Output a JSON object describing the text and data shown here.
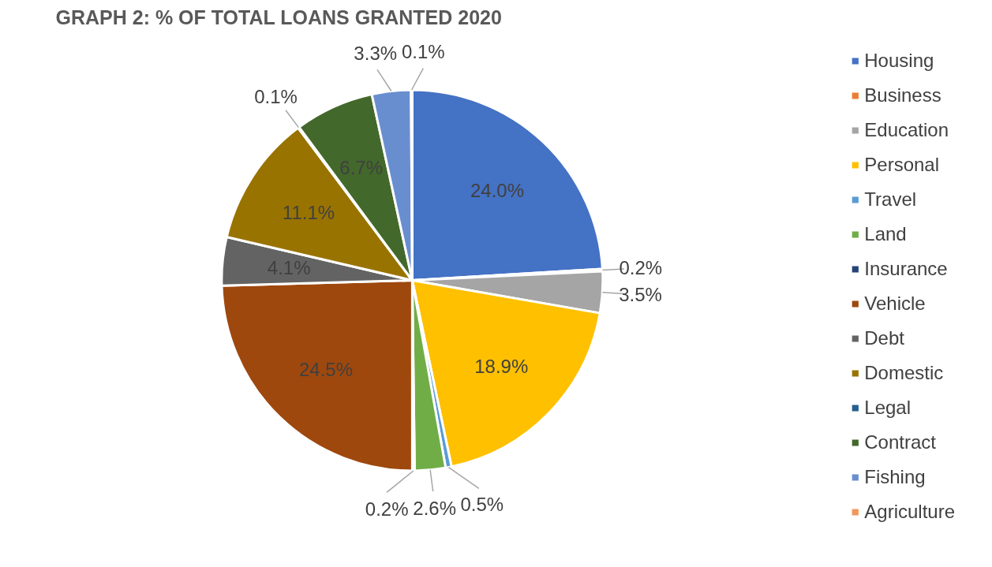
{
  "chart_data": {
    "type": "pie",
    "title": "GRAPH 2: % OF TOTAL LOANS GRANTED 2020",
    "categories": [
      "Housing",
      "Business",
      "Education",
      "Personal",
      "Travel",
      "Land",
      "Insurance",
      "Vehicle",
      "Debt",
      "Domestic",
      "Legal",
      "Contract",
      "Fishing",
      "Agriculture"
    ],
    "values": [
      24.0,
      0.2,
      3.5,
      18.9,
      0.5,
      2.6,
      0.2,
      24.5,
      4.1,
      11.1,
      0.1,
      6.7,
      3.3,
      0.1
    ],
    "value_labels": [
      "24.0%",
      "0.2%",
      "3.5%",
      "18.9%",
      "0.5%",
      "2.6%",
      "0.2%",
      "24.5%",
      "4.1%",
      "11.1%",
      "0.1%",
      "6.7%",
      "3.3%",
      "0.1%"
    ],
    "colors": [
      "#4472c4",
      "#ed7d31",
      "#a5a5a5",
      "#ffc000",
      "#5b9bd5",
      "#70ad47",
      "#264478",
      "#9e480e",
      "#636363",
      "#997300",
      "#255e91",
      "#43682b",
      "#698ed0",
      "#f1975a"
    ],
    "legend": "right"
  }
}
